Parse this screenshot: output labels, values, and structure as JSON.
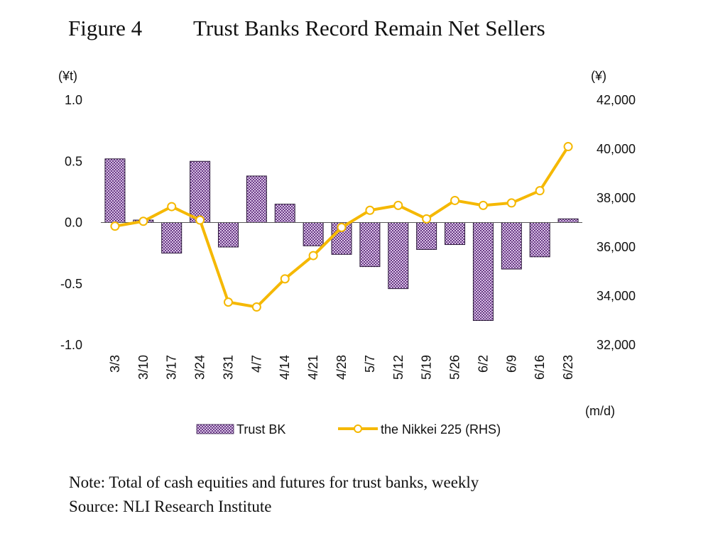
{
  "figure": {
    "number": "Figure 4",
    "title": "Trust Banks Record Remain Net Sellers"
  },
  "notes": {
    "note": "Note: Total of cash equities and futures for trust banks, weekly",
    "source": "Source: NLI Research Institute"
  },
  "chart_data": {
    "type": "bar",
    "categories": [
      "3/3",
      "3/10",
      "3/17",
      "3/24",
      "3/31",
      "4/7",
      "4/14",
      "4/21",
      "4/28",
      "5/7",
      "5/12",
      "5/19",
      "5/26",
      "6/2",
      "6/9",
      "6/16",
      "6/23"
    ],
    "xlabel": "(m/d)",
    "ylabel_left": "(¥t)",
    "ylabel_right": "(¥)",
    "ylim_left": [
      -1.0,
      1.0
    ],
    "yticks_left": [
      "1.0",
      "0.5",
      "0.0",
      "-0.5",
      "-1.0"
    ],
    "ylim_right": [
      32000,
      42000
    ],
    "yticks_right": [
      "42,000",
      "40,000",
      "38,000",
      "36,000",
      "34,000",
      "32,000"
    ],
    "grid": false,
    "legend_position": "bottom",
    "series": [
      {
        "name": "Trust BK",
        "type": "bar",
        "axis": "left",
        "color": "#9b6fb0",
        "values": [
          0.52,
          0.02,
          -0.25,
          0.5,
          -0.2,
          0.38,
          0.15,
          -0.19,
          -0.26,
          -0.36,
          -0.54,
          -0.22,
          -0.18,
          -0.8,
          -0.38,
          -0.28,
          0.03
        ]
      },
      {
        "name": "the Nikkei 225 (RHS)",
        "type": "line",
        "axis": "right",
        "color": "#f5b800",
        "values": [
          36850,
          37050,
          37650,
          37100,
          33750,
          33550,
          34700,
          35650,
          36800,
          37500,
          37700,
          37150,
          37900,
          37700,
          37800,
          38300,
          40100
        ]
      }
    ]
  }
}
